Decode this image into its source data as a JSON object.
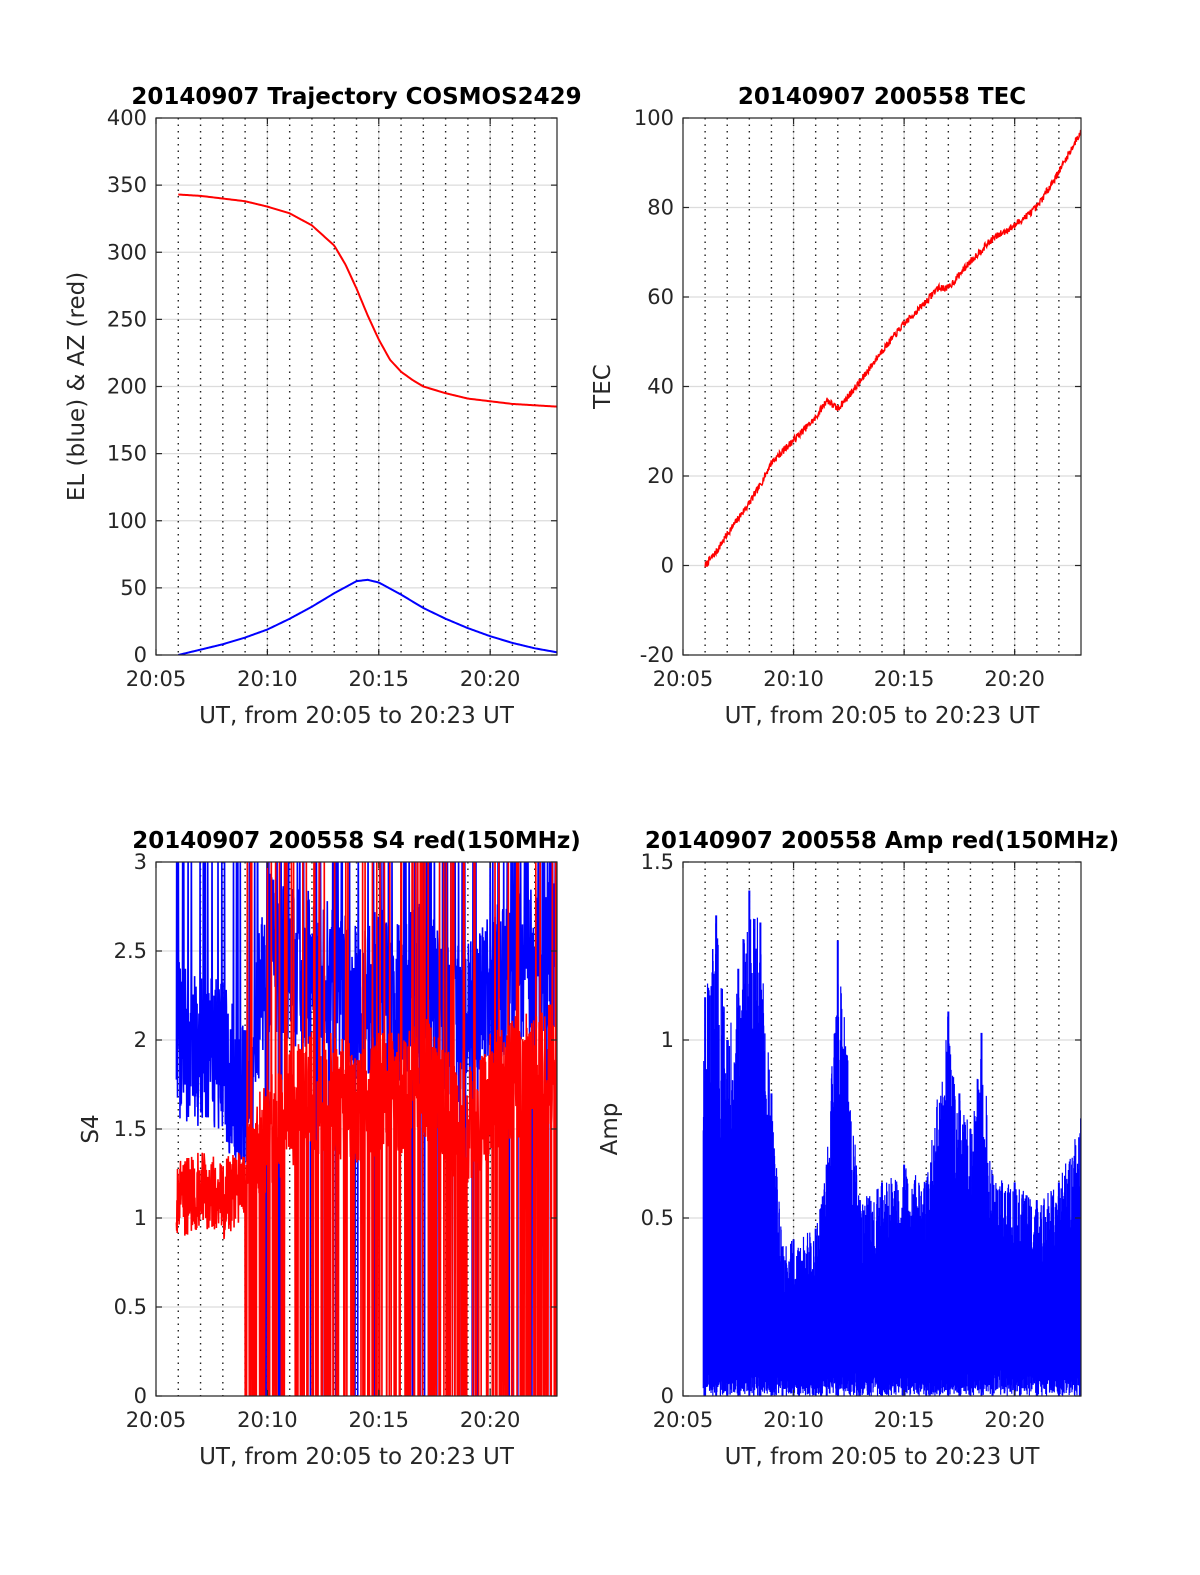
{
  "colors": {
    "el": "#0000ff",
    "az": "#ff0000",
    "tec": "#ff0000",
    "s4_red": "#ff0000",
    "s4_blue": "#0000ff",
    "amp": "#0000ff"
  },
  "chart_data": [
    {
      "id": "trajectory",
      "type": "line",
      "title": "20140907 Trajectory COSMOS2429",
      "xlabel": "UT, from 20:05 to 20:23 UT",
      "ylabel": "EL (blue) & AZ (red)",
      "xlim": [
        "20:05",
        "20:23"
      ],
      "ylim": [
        0,
        400
      ],
      "xticks": [
        "20:05",
        "20:10",
        "20:15",
        "20:20"
      ],
      "yticks": [
        0,
        50,
        100,
        150,
        200,
        250,
        300,
        350,
        400
      ],
      "grid": true,
      "series": [
        {
          "color": "#ff0000",
          "x": [
            "20:06",
            "20:07",
            "20:08",
            "20:09",
            "20:10",
            "20:11",
            "20:12",
            "20:13",
            "20:13:30",
            "20:14",
            "20:14:30",
            "20:15",
            "20:15:30",
            "20:16",
            "20:16:30",
            "20:17",
            "20:18",
            "20:19",
            "20:20",
            "20:21",
            "20:22",
            "20:23"
          ],
          "values": [
            343,
            342,
            340,
            338,
            334,
            329,
            320,
            305,
            291,
            273,
            253,
            235,
            220,
            211,
            205,
            200,
            195,
            191,
            189,
            187,
            186,
            185
          ]
        },
        {
          "color": "#0000ff",
          "x": [
            "20:06",
            "20:07",
            "20:08",
            "20:09",
            "20:10",
            "20:11",
            "20:12",
            "20:13",
            "20:14",
            "20:14:30",
            "20:15",
            "20:16",
            "20:17",
            "20:18",
            "20:19",
            "20:20",
            "20:21",
            "20:22",
            "20:23"
          ],
          "values": [
            0,
            4,
            8,
            13,
            19,
            27,
            36,
            46,
            55,
            56,
            54,
            45,
            35,
            27,
            20,
            14,
            9,
            5,
            2
          ]
        }
      ]
    },
    {
      "id": "tec",
      "type": "line",
      "title": "20140907 200558 TEC",
      "xlabel": "UT, from 20:05 to 20:23 UT",
      "ylabel": "TEC",
      "xlim": [
        "20:05",
        "20:23"
      ],
      "ylim": [
        -20,
        100
      ],
      "xticks": [
        "20:05",
        "20:10",
        "20:15",
        "20:20"
      ],
      "yticks": [
        -20,
        0,
        20,
        40,
        60,
        80,
        100
      ],
      "grid": true,
      "series": [
        {
          "color": "#ff0000",
          "x": [
            "20:06",
            "20:06:30",
            "20:07",
            "20:08",
            "20:08:30",
            "20:09",
            "20:10",
            "20:11",
            "20:11:30",
            "20:12",
            "20:13",
            "20:14",
            "20:15",
            "20:16",
            "20:16:30",
            "20:17",
            "20:18",
            "20:19",
            "20:20",
            "20:21",
            "20:22",
            "20:23"
          ],
          "values": [
            0,
            3,
            7,
            14,
            18,
            23,
            28,
            33,
            37,
            35,
            41,
            48,
            54,
            59,
            62,
            62,
            68,
            73,
            76,
            80,
            88,
            97
          ]
        }
      ]
    },
    {
      "id": "s4",
      "type": "line",
      "title": "20140907 200558 S4 red(150MHz)",
      "xlabel": "UT, from 20:05 to 20:23 UT",
      "ylabel": "S4",
      "xlim": [
        "20:05",
        "20:23"
      ],
      "ylim": [
        0,
        3
      ],
      "xticks": [
        "20:05",
        "20:10",
        "20:15",
        "20:20"
      ],
      "yticks": [
        0,
        0.5,
        1,
        1.5,
        2,
        2.5,
        3
      ],
      "grid": true,
      "series": [
        {
          "color": "#ff0000",
          "x": [
            "20:06",
            "20:07",
            "20:08",
            "20:09",
            "20:10",
            "20:11",
            "20:12",
            "20:13",
            "20:14",
            "20:15",
            "20:16",
            "20:17",
            "20:18",
            "20:19",
            "20:20",
            "20:21",
            "20:22",
            "20:23"
          ],
          "values": [
            1.1,
            1.15,
            1.1,
            1.2,
            1.5,
            1.6,
            1.7,
            1.7,
            1.6,
            1.7,
            1.7,
            1.8,
            1.6,
            1.5,
            1.7,
            1.8,
            1.8,
            1.9
          ]
        },
        {
          "color": "#0000ff",
          "x": [
            "20:06",
            "20:07",
            "20:08",
            "20:09",
            "20:10",
            "20:11",
            "20:12",
            "20:13",
            "20:14",
            "20:15",
            "20:16",
            "20:17",
            "20:18",
            "20:19",
            "20:20",
            "20:21",
            "20:22",
            "20:23"
          ],
          "values": [
            2.0,
            1.9,
            1.9,
            1.6,
            2.5,
            2.4,
            2.4,
            2.3,
            2.2,
            2.3,
            2.2,
            2.4,
            2.1,
            2.1,
            2.3,
            2.4,
            2.4,
            2.5
          ]
        }
      ]
    },
    {
      "id": "amp",
      "type": "line",
      "title": "20140907 200558 Amp red(150MHz)",
      "xlabel": "UT, from 20:05 to 20:23 UT",
      "ylabel": "Amp",
      "xlim": [
        "20:05",
        "20:23"
      ],
      "ylim": [
        0,
        1.5
      ],
      "xticks": [
        "20:05",
        "20:10",
        "20:15",
        "20:20"
      ],
      "yticks": [
        0,
        0.5,
        1,
        1.5
      ],
      "grid": true,
      "series": [
        {
          "color": "#0000ff",
          "x": [
            "20:06",
            "20:06:30",
            "20:07",
            "20:07:30",
            "20:08",
            "20:08:30",
            "20:09",
            "20:09:30",
            "20:10",
            "20:11",
            "20:11:30",
            "20:12",
            "20:13",
            "20:14",
            "20:15",
            "20:16",
            "20:17",
            "20:17:30",
            "20:18",
            "20:18:30",
            "20:19",
            "20:20",
            "20:21",
            "20:22",
            "20:23"
          ],
          "values": [
            1.12,
            1.35,
            1.0,
            1.2,
            1.42,
            1.33,
            0.85,
            0.42,
            0.44,
            0.47,
            0.65,
            1.28,
            0.55,
            0.6,
            0.65,
            0.6,
            1.08,
            0.85,
            0.75,
            1.02,
            0.62,
            0.6,
            0.55,
            0.6,
            0.78
          ]
        }
      ]
    }
  ]
}
